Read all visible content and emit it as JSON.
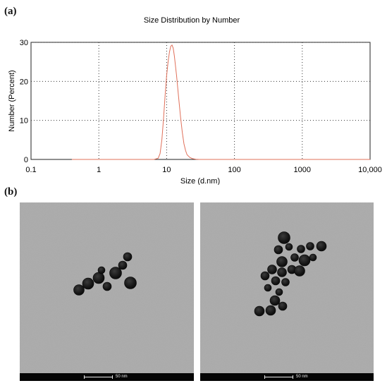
{
  "panel_a_label": "(a)",
  "panel_b_label": "(b)",
  "chart_data": {
    "type": "line",
    "title": "Size Distribution by Number",
    "xlabel": "Size (d.nm)",
    "ylabel": "Number (Percent)",
    "xscale": "log",
    "xlim": [
      0.1,
      10000
    ],
    "ylim": [
      0,
      30
    ],
    "x_ticks": [
      0.1,
      1,
      10,
      100,
      1000,
      10000
    ],
    "x_tick_labels": [
      "0.1",
      "1",
      "10",
      "100",
      "1000",
      "10,000"
    ],
    "y_ticks": [
      0,
      10,
      20,
      30
    ],
    "y_tick_labels": [
      "0",
      "10",
      "20",
      "30"
    ],
    "grid": true,
    "series_color": "#e0705a",
    "series": [
      {
        "x": [
          0.4,
          1,
          3,
          6.5,
          7.5,
          8.0,
          8.5,
          9.0,
          9.5,
          10.0,
          10.5,
          11.0,
          11.5,
          12.0,
          12.5,
          13.0,
          14.0,
          15.0,
          16.0,
          17.0,
          18.0,
          19.0,
          20.0,
          22.0,
          24.0,
          27.0,
          30.0,
          40.0,
          100,
          1000,
          10000
        ],
        "y": [
          0,
          0,
          0,
          0,
          0.3,
          1.5,
          5.0,
          10.5,
          16.5,
          21.5,
          25.0,
          27.5,
          29.0,
          29.3,
          28.5,
          26.5,
          21.5,
          16.0,
          11.0,
          7.0,
          4.0,
          2.3,
          1.2,
          0.5,
          0.2,
          0.05,
          0,
          0,
          0,
          0,
          0
        ]
      }
    ]
  },
  "tem_images": [
    {
      "scale_label": "50 nm"
    },
    {
      "scale_label": "50 nm"
    }
  ]
}
